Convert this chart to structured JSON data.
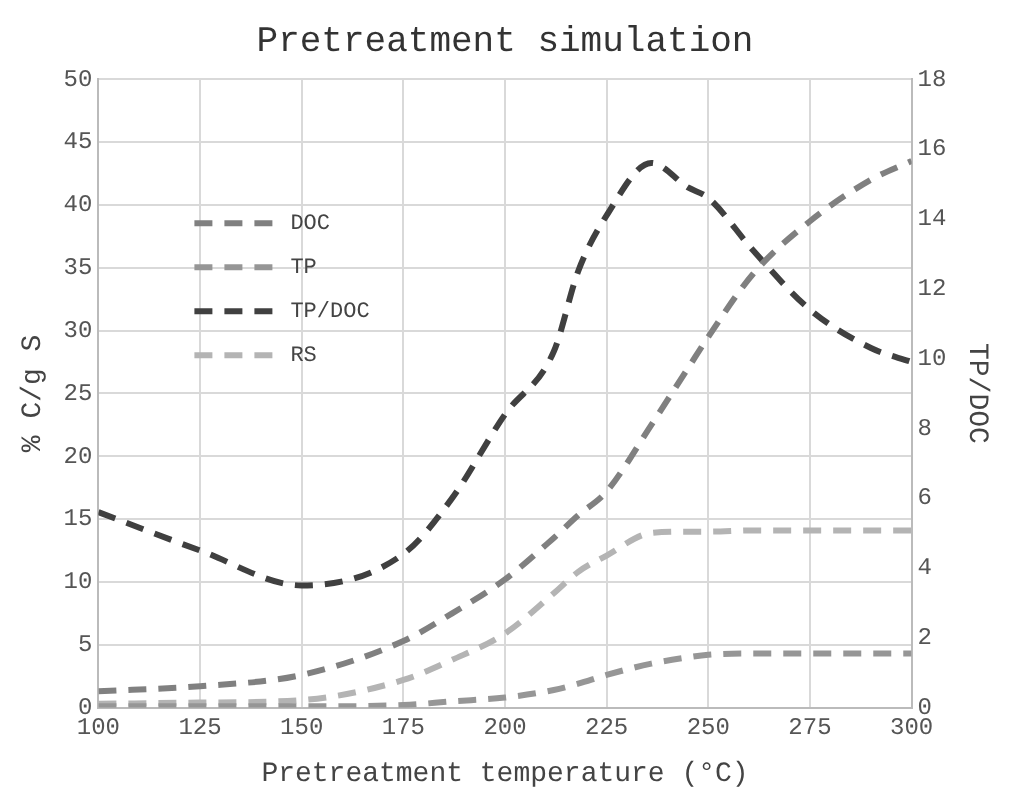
{
  "chart_data": {
    "type": "line",
    "title": "Pretreatment simulation",
    "xlabel": "Pretreatment temperature (°C)",
    "ylabel": "% C/g S",
    "y2label": "TP/DOC",
    "x": [
      100,
      125,
      150,
      175,
      187,
      200,
      212,
      218,
      225,
      236,
      245,
      250,
      261,
      275,
      290,
      300
    ],
    "xlim": [
      100,
      300
    ],
    "xticks": [
      100,
      125,
      150,
      175,
      200,
      225,
      250,
      275,
      300
    ],
    "ylim": [
      0,
      50
    ],
    "yticks": [
      0,
      5,
      10,
      15,
      20,
      25,
      30,
      35,
      40,
      45,
      50
    ],
    "y2lim": [
      0,
      18
    ],
    "y2ticks": [
      0,
      2,
      4,
      6,
      8,
      10,
      12,
      14,
      16,
      18
    ],
    "grid": true,
    "legend": "top left",
    "marker": "none",
    "line_style": "dashed",
    "series": [
      {
        "name": "DOC",
        "color": "#808080",
        "values": [
          1.3,
          1.7,
          2.6,
          5.3,
          7.5,
          10.2,
          13.5,
          15.3,
          17.2,
          22.5,
          27,
          29.5,
          34.5,
          38.7,
          42,
          43.5
        ]
      },
      {
        "name": "TP",
        "color": "#969696",
        "values": [
          0.1,
          0.1,
          0.1,
          0.2,
          0.5,
          0.8,
          1.4,
          1.9,
          2.6,
          3.5,
          4.0,
          4.2,
          4.3,
          4.3,
          4.3,
          4.3
        ]
      },
      {
        "name": "TP/DOC",
        "color": "#404040",
        "axis": "y2",
        "values": [
          5.6,
          4.5,
          3.5,
          4.4,
          6,
          8.4,
          10.2,
          12.5,
          14.1,
          15.6,
          14.9,
          14.6,
          13.1,
          11.4,
          10.3,
          9.9
        ]
      },
      {
        "name": "RS",
        "color": "#b4b4b4",
        "values": [
          0.3,
          0.4,
          0.6,
          2.2,
          3.8,
          5.9,
          9.1,
          10.8,
          12.1,
          13.9,
          14.0,
          14.0,
          14.1,
          14.1,
          14.1,
          14.1
        ]
      }
    ]
  }
}
